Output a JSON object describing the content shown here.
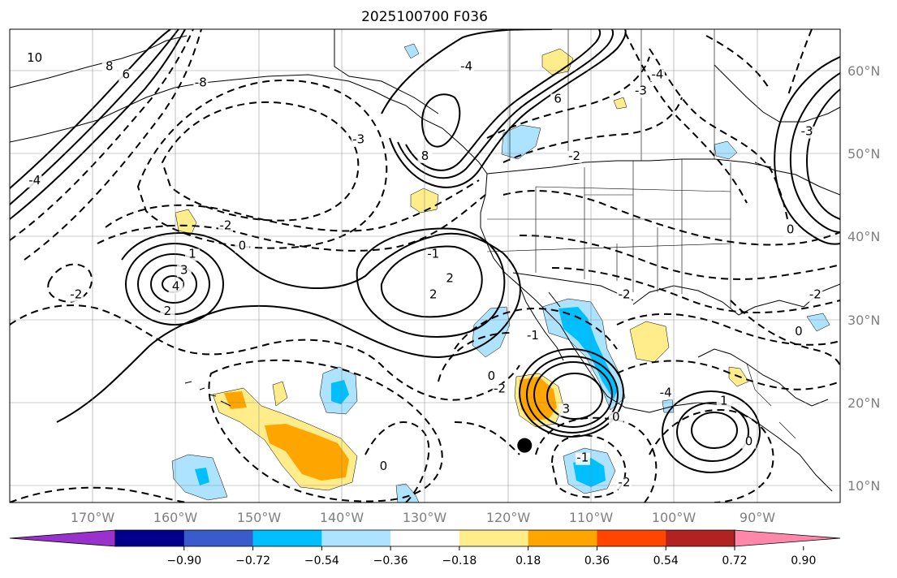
{
  "title": "2025100700 F036",
  "map": {
    "lon_range": [
      -180,
      -80
    ],
    "lat_range": [
      8,
      66
    ],
    "lon_ticks": [
      "170°W",
      "160°W",
      "150°W",
      "140°W",
      "130°W",
      "120°W",
      "110°W",
      "100°W",
      "90°W"
    ],
    "lat_ticks": [
      "60°N",
      "50°N",
      "40°N",
      "30°N",
      "20°N",
      "10°N"
    ],
    "gridlines": true,
    "marker": {
      "type": "black-dot",
      "lon": -118,
      "lat": 15
    },
    "contour_labels": [
      {
        "text": "10",
        "lon": -177,
        "lat": 62
      },
      {
        "text": "8",
        "lon": -168,
        "lat": 61
      },
      {
        "text": "6",
        "lon": -166,
        "lat": 60
      },
      {
        "text": "-8",
        "lon": -157,
        "lat": 59
      },
      {
        "text": "-4",
        "lon": -177,
        "lat": 47
      },
      {
        "text": "-3",
        "lon": -138,
        "lat": 52
      },
      {
        "text": "-2",
        "lon": -154,
        "lat": 41.5
      },
      {
        "text": "0",
        "lon": -152,
        "lat": 39
      },
      {
        "text": "1",
        "lon": -158,
        "lat": 38
      },
      {
        "text": "3",
        "lon": -159,
        "lat": 36
      },
      {
        "text": "4",
        "lon": -160,
        "lat": 34
      },
      {
        "text": "2",
        "lon": -161,
        "lat": 31
      },
      {
        "text": "-2",
        "lon": -172,
        "lat": 33
      },
      {
        "text": "-4",
        "lon": -125,
        "lat": 61
      },
      {
        "text": "6",
        "lon": -114,
        "lat": 57
      },
      {
        "text": "8",
        "lon": -130,
        "lat": 50
      },
      {
        "text": "-2",
        "lon": -112,
        "lat": 50
      },
      {
        "text": "-3",
        "lon": -104,
        "lat": 58
      },
      {
        "text": "-4",
        "lon": -102,
        "lat": 60
      },
      {
        "text": "2",
        "lon": -127,
        "lat": 35
      },
      {
        "text": "2",
        "lon": -129,
        "lat": 33
      },
      {
        "text": "-1",
        "lon": -129,
        "lat": 38
      },
      {
        "text": "-2",
        "lon": -83,
        "lat": 33
      },
      {
        "text": "0",
        "lon": -85,
        "lat": 28.5
      },
      {
        "text": "-2",
        "lon": -106,
        "lat": 33
      },
      {
        "text": "-1",
        "lon": -117,
        "lat": 28
      },
      {
        "text": "0",
        "lon": -122,
        "lat": 23
      },
      {
        "text": "-2",
        "lon": -121,
        "lat": 21.5
      },
      {
        "text": "3",
        "lon": -113,
        "lat": 19
      },
      {
        "text": "0",
        "lon": -107,
        "lat": 18
      },
      {
        "text": "-1",
        "lon": -111,
        "lat": 13
      },
      {
        "text": "-2",
        "lon": -106,
        "lat": 10
      },
      {
        "text": "1",
        "lon": -94,
        "lat": 20
      },
      {
        "text": "0",
        "lon": -91,
        "lat": 15
      },
      {
        "text": "-4",
        "lon": -101,
        "lat": 21
      },
      {
        "text": "0",
        "lon": -135,
        "lat": 12
      },
      {
        "text": "-3",
        "lon": -84,
        "lat": 53
      },
      {
        "text": "0",
        "lon": -86,
        "lat": 41
      }
    ]
  },
  "colorbar": {
    "colors": [
      "#9932cc",
      "#00008b",
      "#3a5bcc",
      "#00bfff",
      "#aee3ff",
      "#ffffff",
      "#ffec8b",
      "#ffa500",
      "#ff4500",
      "#b22222",
      "#ff88aa"
    ],
    "levels": [
      -1.08,
      -0.9,
      -0.72,
      -0.54,
      -0.36,
      -0.18,
      0.18,
      0.36,
      0.54,
      0.72,
      0.9,
      1.08
    ],
    "tick_labels": [
      "−0.90",
      "−0.72",
      "−0.54",
      "−0.36",
      "−0.18",
      "0.18",
      "0.36",
      "0.54",
      "0.72",
      "0.90"
    ],
    "extend": "both"
  }
}
